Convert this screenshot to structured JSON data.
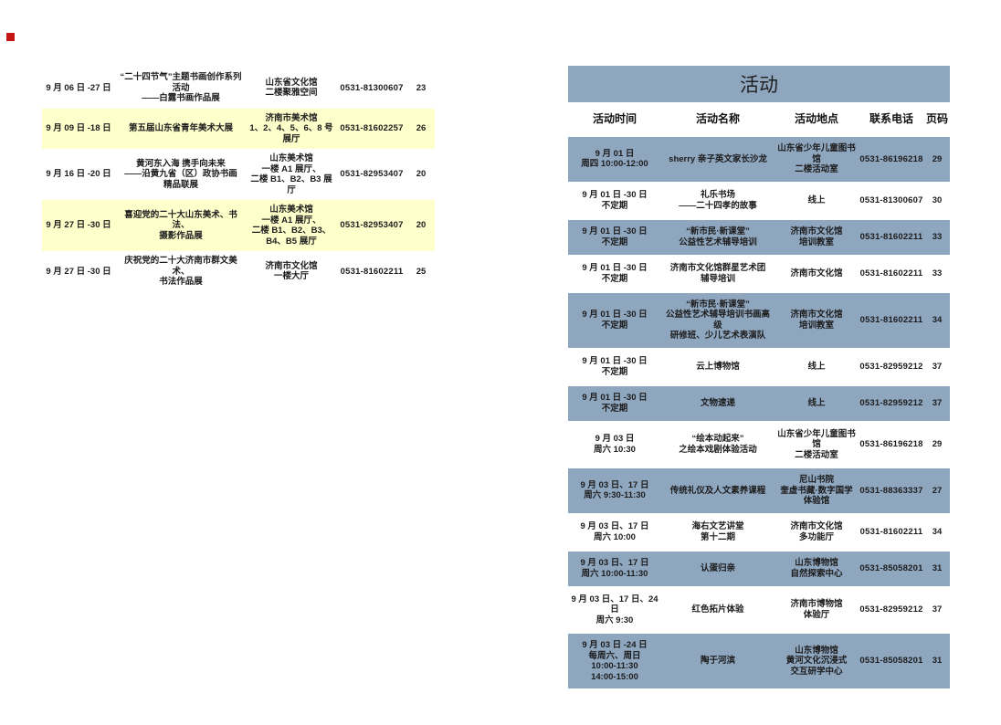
{
  "colors": {
    "table_blue": "#8fa6bf",
    "highlight_yellow": "#ffffcc",
    "marker_red": "#c41414",
    "text": "#1c1c1c"
  },
  "left_table": {
    "rows": [
      {
        "time": "9 月 06 日 -27 日",
        "name": "“二十四节气”主题书画创作系列\n活动\n——白露书画作品展",
        "location": "山东省文化馆\n二楼聚雅空间",
        "phone": "0531-81300607",
        "page": "23",
        "highlight": false
      },
      {
        "time": "9 月 09 日 -18 日",
        "name": "第五届山东省青年美术大展",
        "location": "济南市美术馆\n1、2、4、5、6、8 号\n展厅",
        "phone": "0531-81602257",
        "page": "26",
        "highlight": true
      },
      {
        "time": "9 月 16 日 -20 日",
        "name": "黄河东入海 携手向未来\n——沿黄九省（区）政协书画\n精品联展",
        "location": "山东美术馆\n一楼 A1 展厅、\n二楼 B1、B2、B3 展厅",
        "phone": "0531-82953407",
        "page": "20",
        "highlight": false
      },
      {
        "time": "9 月 27 日 -30 日",
        "name": "喜迎党的二十大山东美术、书法、\n摄影作品展",
        "location": "山东美术馆\n一楼 A1 展厅、\n二楼 B1、B2、B3、\nB4、B5 展厅",
        "phone": "0531-82953407",
        "page": "20",
        "highlight": true
      },
      {
        "time": "9 月 27 日 -30 日",
        "name": "庆祝党的二十大济南市群文美术、\n书法作品展",
        "location": "济南市文化馆\n一楼大厅",
        "phone": "0531-81602211",
        "page": "25",
        "highlight": false
      }
    ]
  },
  "right_table": {
    "title": "活动",
    "headers": [
      "活动时间",
      "活动名称",
      "活动地点",
      "联系电话",
      "页码"
    ],
    "rows": [
      {
        "time": "9 月 01 日\n周四 10:00-12:00",
        "name": "sherry 亲子英文家长沙龙",
        "location": "山东省少年儿童图书馆\n二楼活动室",
        "phone": "0531-86196218",
        "page": "29",
        "shaded": true
      },
      {
        "time": "9 月 01 日 -30 日\n不定期",
        "name": "礼乐书场\n——二十四孝的故事",
        "location": "线上",
        "phone": "0531-81300607",
        "page": "30",
        "shaded": false
      },
      {
        "time": "9 月 01 日 -30 日\n不定期",
        "name": "“新市民·新课堂”\n公益性艺术辅导培训",
        "location": "济南市文化馆\n培训教室",
        "phone": "0531-81602211",
        "page": "33",
        "shaded": true
      },
      {
        "time": "9 月 01 日 -30 日\n不定期",
        "name": "济南市文化馆群星艺术团\n辅导培训",
        "location": "济南市文化馆",
        "phone": "0531-81602211",
        "page": "33",
        "shaded": false
      },
      {
        "time": "9 月 01 日 -30 日\n不定期",
        "name": "“新市民·新课堂”\n公益性艺术辅导培训书画高级\n研修班、少儿艺术表演队",
        "location": "济南市文化馆\n培训教室",
        "phone": "0531-81602211",
        "page": "34",
        "shaded": true
      },
      {
        "time": "9 月 01 日 -30 日\n不定期",
        "name": "云上博物馆",
        "location": "线上",
        "phone": "0531-82959212",
        "page": "37",
        "shaded": false
      },
      {
        "time": "9 月 01 日 -30 日\n不定期",
        "name": "文物速递",
        "location": "线上",
        "phone": "0531-82959212",
        "page": "37",
        "shaded": true
      },
      {
        "time": "9 月 03 日\n周六 10:30",
        "name": "“绘本动起来”\n之绘本戏剧体验活动",
        "location": "山东省少年儿童图书馆\n二楼活动室",
        "phone": "0531-86196218",
        "page": "29",
        "shaded": false
      },
      {
        "time": "9 月 03 日、17 日\n周六 9:30-11:30",
        "name": "传统礼仪及人文素养课程",
        "location": "尼山书院\n奎虚书藏·数字国学\n体验馆",
        "phone": "0531-88363337",
        "page": "27",
        "shaded": true
      },
      {
        "time": "9 月 03 日、17 日\n周六 10:00",
        "name": "海右文艺讲堂\n第十二期",
        "location": "济南市文化馆\n多功能厅",
        "phone": "0531-81602211",
        "page": "34",
        "shaded": false
      },
      {
        "time": "9 月 03 日、17 日\n周六 10:00-11:30",
        "name": "认蛋归亲",
        "location": "山东博物馆\n自然探索中心",
        "phone": "0531-85058201",
        "page": "31",
        "shaded": true
      },
      {
        "time": "9 月 03 日、17 日、24 日\n周六 9:30",
        "name": "红色拓片体验",
        "location": "济南市博物馆\n体验厅",
        "phone": "0531-82959212",
        "page": "37",
        "shaded": false
      },
      {
        "time": "9 月 03 日 -24 日\n每周六、周日\n10:00-11:30\n14:00-15:00",
        "name": "陶于河滨",
        "location": "山东博物馆\n黄河文化沉浸式\n交互研学中心",
        "phone": "0531-85058201",
        "page": "31",
        "shaded": true
      }
    ]
  }
}
